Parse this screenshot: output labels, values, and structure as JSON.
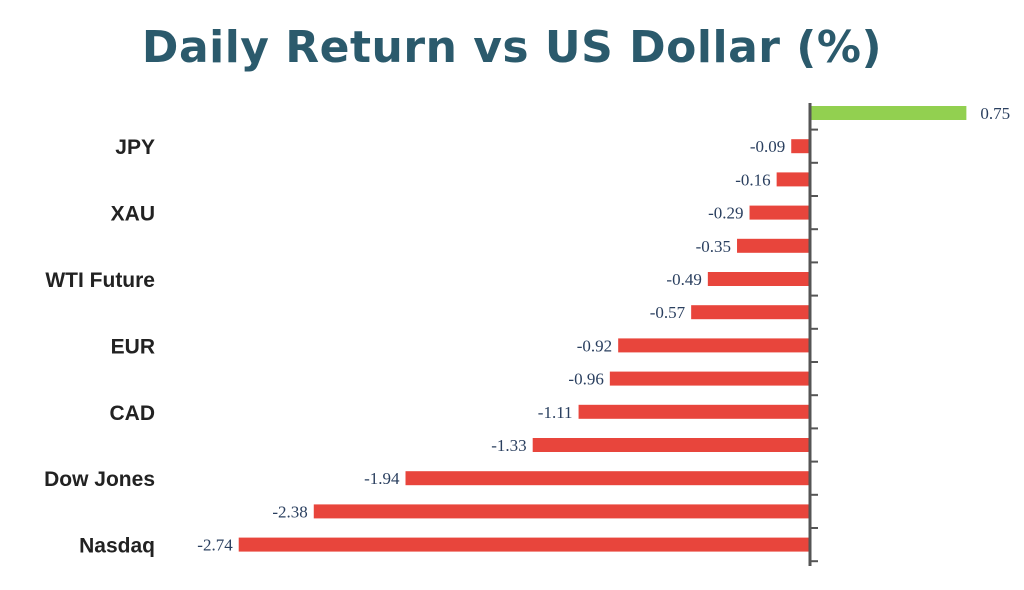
{
  "chart_data": {
    "type": "bar",
    "orientation": "horizontal",
    "title": "Daily Return vs US Dollar (%)",
    "xlabel": "",
    "ylabel": "",
    "categories": [
      "",
      "JPY",
      "",
      "XAU",
      "",
      "WTI Future",
      "",
      "EUR",
      "",
      "CAD",
      "",
      "Dow Jones",
      "",
      "Nasdaq"
    ],
    "values": [
      0.75,
      -0.09,
      -0.16,
      -0.29,
      -0.35,
      -0.49,
      -0.57,
      -0.92,
      -0.96,
      -1.11,
      -1.33,
      -1.94,
      -2.38,
      -2.74
    ],
    "value_labels": [
      "0.75",
      "-0.09",
      "-0.16",
      "-0.29",
      "-0.35",
      "-0.49",
      "-0.57",
      "-0.92",
      "-0.96",
      "-1.11",
      "-1.33",
      "-1.94",
      "-2.38",
      "-2.74"
    ],
    "xlim": [
      -2.74,
      0.75
    ],
    "grid": false,
    "legend": "none",
    "colors": {
      "positive": "#92d050",
      "negative": "#e8453c",
      "axis": "#555555"
    }
  }
}
